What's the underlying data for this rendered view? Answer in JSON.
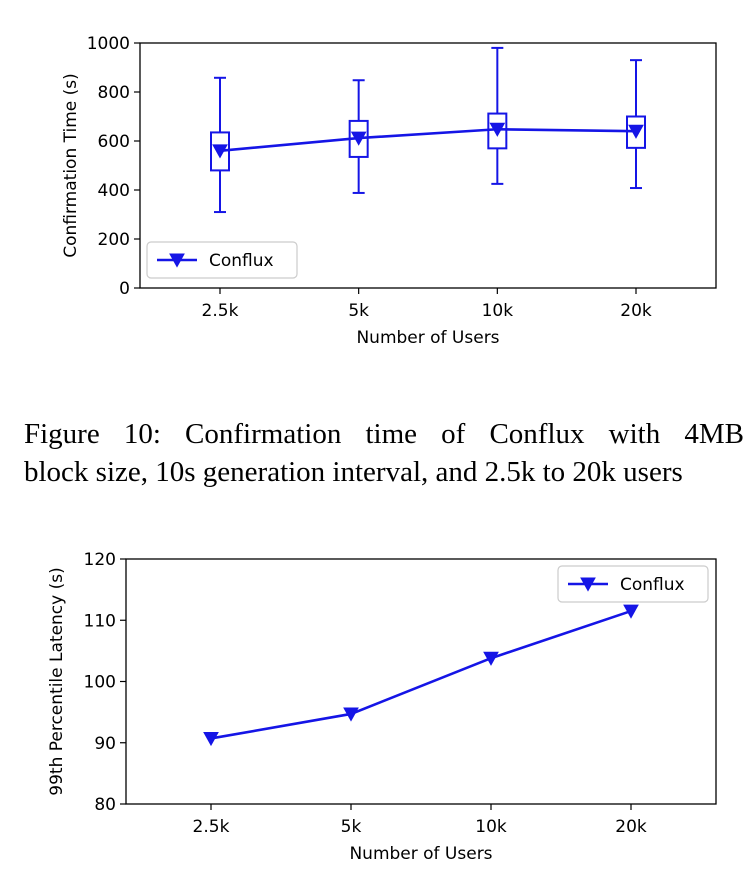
{
  "caption": {
    "line1": "Figure 10:  Confirmation time of Conflux with 4MB",
    "line2": "block size, 10s generation interval, and 2.5k to 20k users"
  },
  "chart_data": [
    {
      "type": "line",
      "subtype": "box-with-mean-line",
      "categories": [
        "2.5k",
        "5k",
        "10k",
        "20k"
      ],
      "series": [
        {
          "name": "Conflux",
          "values": [
            560,
            612,
            648,
            640
          ],
          "box": [
            {
              "whisker_low": 310,
              "q1": 480,
              "q3": 635,
              "whisker_high": 858
            },
            {
              "whisker_low": 388,
              "q1": 535,
              "q3": 682,
              "whisker_high": 848
            },
            {
              "whisker_low": 425,
              "q1": 570,
              "q3": 712,
              "whisker_high": 980
            },
            {
              "whisker_low": 408,
              "q1": 572,
              "q3": 700,
              "whisker_high": 930
            }
          ]
        }
      ],
      "xlabel": "Number of Users",
      "ylabel": "Confirmation Time (s)",
      "ylim": [
        0,
        1000
      ],
      "yticks": [
        0,
        200,
        400,
        600,
        800,
        1000
      ],
      "legend_position": "lower-left",
      "grid": false,
      "color": "#1515e6",
      "marker": "triangle-down"
    },
    {
      "type": "line",
      "categories": [
        "2.5k",
        "5k",
        "10k",
        "20k"
      ],
      "series": [
        {
          "name": "Conflux",
          "values": [
            90.7,
            94.7,
            103.8,
            111.5
          ]
        }
      ],
      "xlabel": "Number of Users",
      "ylabel": "99th Percentile Latency (s)",
      "ylim": [
        80,
        120
      ],
      "yticks": [
        80,
        90,
        100,
        110,
        120
      ],
      "legend_position": "upper-right",
      "grid": false,
      "color": "#1515e6",
      "marker": "triangle-down"
    }
  ]
}
